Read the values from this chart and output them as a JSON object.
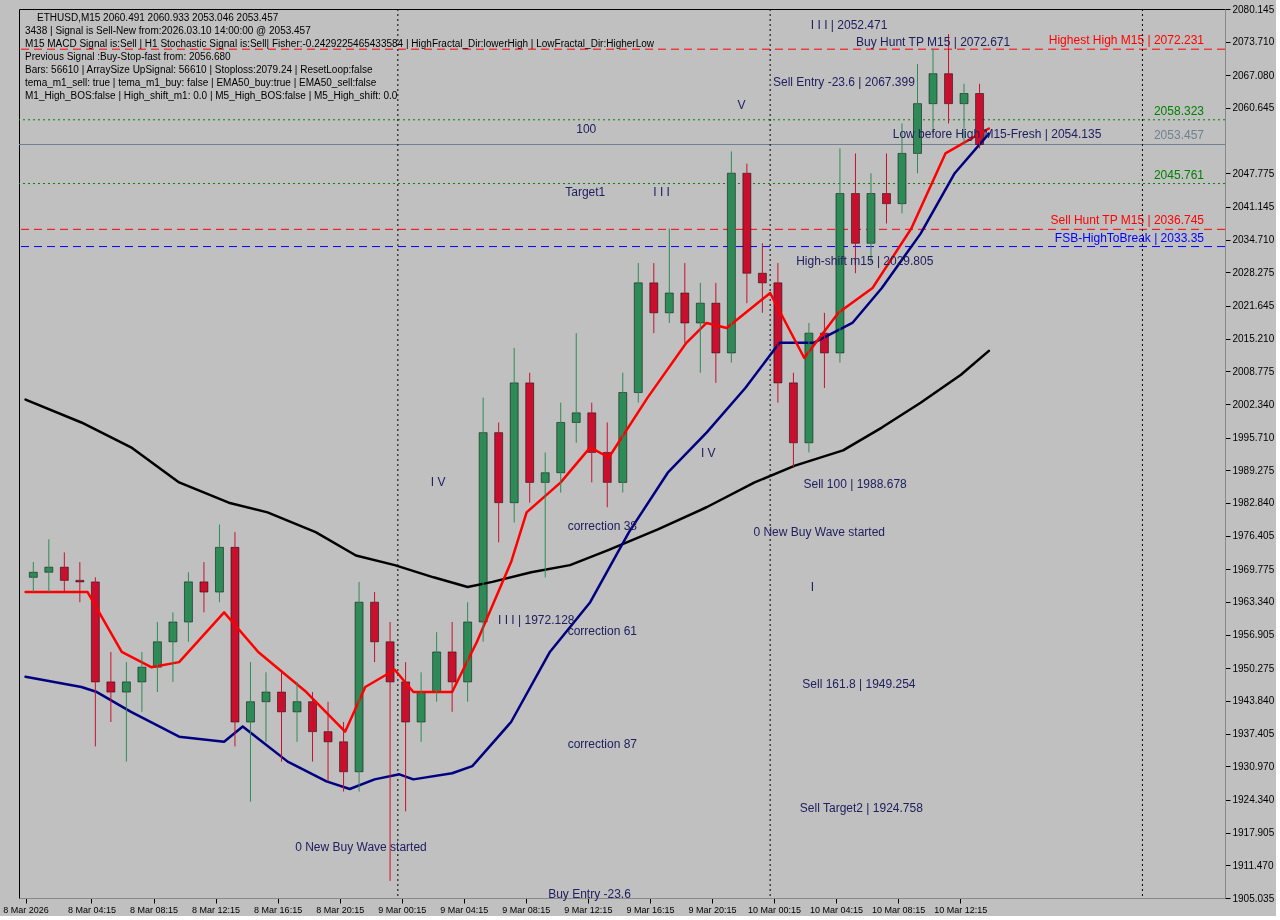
{
  "chart_data": {
    "type": "candlestick",
    "title": "ETHUSD,M15  2060.491 2060.933 2053.046 2053.457",
    "x": [
      "2026-03-08T00:30",
      "2026-03-08T01:30",
      "2026-03-08T02:30",
      "2026-03-08T03:30",
      "2026-03-08T04:30",
      "2026-03-08T05:30",
      "2026-03-08T06:30",
      "2026-03-08T07:30",
      "2026-03-08T08:30",
      "2026-03-08T09:30",
      "2026-03-08T10:30",
      "2026-03-08T11:30",
      "2026-03-08T12:30",
      "2026-03-08T13:30",
      "2026-03-08T14:30",
      "2026-03-08T15:30",
      "2026-03-08T16:30",
      "2026-03-08T17:30",
      "2026-03-08T18:30",
      "2026-03-08T19:30",
      "2026-03-08T20:30",
      "2026-03-08T21:30",
      "2026-03-08T22:30",
      "2026-03-08T23:30",
      "2026-03-09T00:30",
      "2026-03-09T01:30",
      "2026-03-09T02:30",
      "2026-03-09T03:30",
      "2026-03-09T04:30",
      "2026-03-09T05:30",
      "2026-03-09T06:30",
      "2026-03-09T07:30",
      "2026-03-09T08:30",
      "2026-03-09T09:30",
      "2026-03-09T10:30",
      "2026-03-09T11:30",
      "2026-03-09T12:30",
      "2026-03-09T13:30",
      "2026-03-09T14:30",
      "2026-03-09T15:30",
      "2026-03-09T16:30",
      "2026-03-09T17:30",
      "2026-03-09T18:30",
      "2026-03-09T19:30",
      "2026-03-09T20:30",
      "2026-03-09T21:30",
      "2026-03-09T22:30",
      "2026-03-09T23:30",
      "2026-03-10T00:30",
      "2026-03-10T01:30",
      "2026-03-10T02:30",
      "2026-03-10T03:30",
      "2026-03-10T04:30",
      "2026-03-10T05:30",
      "2026-03-10T06:30",
      "2026-03-10T07:30",
      "2026-03-10T08:30",
      "2026-03-10T09:30",
      "2026-03-10T10:30",
      "2026-03-10T11:30",
      "2026-03-10T12:30",
      "2026-03-10T13:30"
    ],
    "ohlc": [
      [
        1968.2,
        1971.2,
        1965.3,
        1969.2
      ],
      [
        1969.2,
        1975.7,
        1965.3,
        1970.2
      ],
      [
        1970.2,
        1973.1,
        1965.3,
        1967.6
      ],
      [
        1967.6,
        1971.2,
        1963.3,
        1967.3
      ],
      [
        1967.3,
        1968.2,
        1934.9,
        1947.6
      ],
      [
        1947.6,
        1953.5,
        1939.7,
        1945.6
      ],
      [
        1945.6,
        1951.5,
        1931.9,
        1947.6
      ],
      [
        1947.6,
        1953.5,
        1941.7,
        1950.5
      ],
      [
        1950.5,
        1959.4,
        1945.6,
        1955.5
      ],
      [
        1955.5,
        1961.3,
        1947.6,
        1959.4
      ],
      [
        1959.4,
        1969.2,
        1955.5,
        1967.3
      ],
      [
        1967.3,
        1971.2,
        1961.3,
        1965.3
      ],
      [
        1965.3,
        1978.6,
        1963.3,
        1974.1
      ],
      [
        1974.1,
        1977.1,
        1934.9,
        1939.7
      ],
      [
        1939.7,
        1951.5,
        1924.0,
        1943.7
      ],
      [
        1943.7,
        1949.5,
        1935.8,
        1945.6
      ],
      [
        1945.6,
        1949.5,
        1931.9,
        1941.7
      ],
      [
        1941.7,
        1947.6,
        1935.8,
        1943.7
      ],
      [
        1943.7,
        1945.6,
        1931.9,
        1937.8
      ],
      [
        1937.8,
        1943.7,
        1928.0,
        1935.8
      ],
      [
        1935.8,
        1939.7,
        1926.0,
        1929.9
      ],
      [
        1929.9,
        1967.3,
        1926.0,
        1963.3
      ],
      [
        1963.3,
        1965.3,
        1951.5,
        1955.5
      ],
      [
        1955.5,
        1959.4,
        1908.4,
        1947.6
      ],
      [
        1947.6,
        1951.5,
        1922.1,
        1939.7
      ],
      [
        1939.7,
        1949.5,
        1935.8,
        1945.6
      ],
      [
        1945.6,
        1957.4,
        1943.7,
        1953.5
      ],
      [
        1953.5,
        1959.4,
        1941.7,
        1947.6
      ],
      [
        1947.6,
        1963.3,
        1943.7,
        1959.4
      ],
      [
        1959.4,
        2003.6,
        1955.5,
        1996.7
      ],
      [
        1996.7,
        1998.7,
        1975.1,
        1982.9
      ],
      [
        1982.9,
        2013.4,
        1979.0,
        2006.5
      ],
      [
        2006.5,
        2008.5,
        1982.9,
        1986.9
      ],
      [
        1986.9,
        1992.8,
        1968.2,
        1988.8
      ],
      [
        1988.8,
        2002.6,
        1984.9,
        1998.7
      ],
      [
        1998.7,
        2016.3,
        1994.7,
        2000.6
      ],
      [
        2000.6,
        2002.6,
        1986.9,
        1992.8
      ],
      [
        1992.8,
        1998.7,
        1982.0,
        1986.9
      ],
      [
        1986.9,
        2008.5,
        1984.9,
        2004.6
      ],
      [
        2004.6,
        2030.1,
        2002.6,
        2026.2
      ],
      [
        2026.2,
        2030.1,
        2016.3,
        2020.3
      ],
      [
        2020.3,
        2036.9,
        2018.3,
        2024.2
      ],
      [
        2024.2,
        2030.1,
        2014.4,
        2018.3
      ],
      [
        2018.3,
        2026.2,
        2008.5,
        2022.2
      ],
      [
        2022.2,
        2026.2,
        2006.5,
        2012.4
      ],
      [
        2012.4,
        2052.1,
        2010.5,
        2047.8
      ],
      [
        2047.8,
        2049.7,
        2022.2,
        2028.1
      ],
      [
        2028.1,
        2034.0,
        2020.3,
        2026.2
      ],
      [
        2026.2,
        2030.1,
        2002.6,
        2006.5
      ],
      [
        2006.5,
        2008.5,
        1989.8,
        1994.7
      ],
      [
        1994.7,
        2018.3,
        1992.8,
        2016.3
      ],
      [
        2016.3,
        2020.3,
        2005.5,
        2012.4
      ],
      [
        2012.4,
        2052.7,
        2010.5,
        2043.8
      ],
      [
        2043.8,
        2051.7,
        2028.1,
        2034.0
      ],
      [
        2034.0,
        2047.8,
        2030.1,
        2043.8
      ],
      [
        2043.8,
        2051.7,
        2037.9,
        2041.8
      ],
      [
        2041.8,
        2057.6,
        2039.9,
        2051.7
      ],
      [
        2051.7,
        2069.3,
        2047.8,
        2061.5
      ],
      [
        2061.5,
        2072.3,
        2055.6,
        2067.4
      ],
      [
        2067.4,
        2075.2,
        2057.6,
        2061.5
      ],
      [
        2061.5,
        2065.4,
        2053.6,
        2063.5
      ],
      [
        2063.5,
        2065.4,
        2052.7,
        2053.457
      ]
    ],
    "colors": [
      "#2e8b57",
      "#2e8b57",
      "#c8102e",
      "#c8102e",
      "#c8102e",
      "#c8102e",
      "#2e8b57",
      "#2e8b57",
      "#2e8b57",
      "#2e8b57",
      "#2e8b57",
      "#c8102e",
      "#2e8b57",
      "#c8102e",
      "#2e8b57",
      "#2e8b57",
      "#c8102e",
      "#2e8b57",
      "#c8102e",
      "#c8102e",
      "#c8102e",
      "#2e8b57",
      "#c8102e",
      "#c8102e",
      "#c8102e",
      "#2e8b57",
      "#2e8b57",
      "#c8102e",
      "#2e8b57",
      "#2e8b57",
      "#c8102e",
      "#2e8b57",
      "#c8102e",
      "#2e8b57",
      "#2e8b57",
      "#2e8b57",
      "#c8102e",
      "#c8102e",
      "#2e8b57",
      "#2e8b57",
      "#c8102e",
      "#2e8b57",
      "#c8102e",
      "#2e8b57",
      "#c8102e",
      "#2e8b57",
      "#c8102e",
      "#c8102e",
      "#c8102e",
      "#c8102e",
      "#2e8b57",
      "#c8102e",
      "#2e8b57",
      "#c8102e",
      "#2e8b57",
      "#c8102e",
      "#2e8b57",
      "#2e8b57",
      "#2e8b57",
      "#c8102e",
      "#2e8b57",
      "#c8102e"
    ],
    "series": [
      {
        "type": "line",
        "color": "#000000",
        "x": [
          "2026-03-08T00:00",
          "2026-03-08T03:36",
          "2026-03-08T06:48",
          "2026-03-08T09:54",
          "2026-03-08T13:06",
          "2026-03-08T15:36",
          "2026-03-08T18:42",
          "2026-03-08T21:18",
          "2026-03-08T23:48",
          "2026-03-09T02:18",
          "2026-03-09T04:30",
          "2026-03-09T06:06",
          "2026-03-09T08:36",
          "2026-03-09T11:06",
          "2026-03-09T13:36",
          "2026-03-09T16:48",
          "2026-03-09T19:54",
          "2026-03-09T23:00",
          "2026-03-10T01:36",
          "2026-03-10T04:42",
          "2026-03-10T07:12",
          "2026-03-10T09:42",
          "2026-03-10T12:18",
          "2026-03-10T14:06"
        ],
        "values": [
          2003.2,
          1998.7,
          1993.8,
          1986.9,
          1982.9,
          1981.0,
          1977.1,
          1972.5,
          1970.6,
          1968.2,
          1966.3,
          1967.3,
          1969.2,
          1970.6,
          1973.6,
          1977.7,
          1982.0,
          1986.9,
          1990.2,
          1993.2,
          1997.7,
          2002.6,
          2008.1,
          2012.8
        ]
      },
      {
        "type": "line",
        "color": "#000080",
        "x": [
          "2026-03-08T00:00",
          "2026-03-08T03:36",
          "2026-03-08T04:36",
          "2026-03-08T06:48",
          "2026-03-08T09:54",
          "2026-03-08T12:48",
          "2026-03-08T14:00",
          "2026-03-08T16:54",
          "2026-03-08T19:24",
          "2026-03-08T20:54",
          "2026-03-08T22:30",
          "2026-03-09T00:06",
          "2026-03-09T01:00",
          "2026-03-09T03:30",
          "2026-03-09T04:48",
          "2026-03-09T07:18",
          "2026-03-09T09:48",
          "2026-03-09T12:24",
          "2026-03-09T14:54",
          "2026-03-09T17:24",
          "2026-03-09T19:54",
          "2026-03-09T22:24",
          "2026-03-10T00:36",
          "2026-03-10T02:48",
          "2026-03-10T05:18",
          "2026-03-10T07:12",
          "2026-03-10T09:42",
          "2026-03-10T11:54",
          "2026-03-10T14:06"
        ],
        "values": [
          1948.6,
          1946.6,
          1945.6,
          1941.7,
          1936.8,
          1935.8,
          1938.8,
          1931.9,
          1928.0,
          1926.5,
          1928.4,
          1929.4,
          1928.4,
          1929.6,
          1931.0,
          1939.7,
          1953.5,
          1963.3,
          1977.1,
          1988.8,
          1996.7,
          2005.5,
          2014.4,
          2014.4,
          2018.3,
          2025.2,
          2035.9,
          2047.8,
          2055.6
        ]
      },
      {
        "type": "line",
        "color": "#ff0000",
        "x": [
          "2026-03-08T00:00",
          "2026-03-08T04:00",
          "2026-03-08T06:12",
          "2026-03-08T08:06",
          "2026-03-08T09:54",
          "2026-03-08T12:48",
          "2026-03-08T15:00",
          "2026-03-08T18:06",
          "2026-03-08T20:36",
          "2026-03-08T21:54",
          "2026-03-08T23:48",
          "2026-03-09T01:00",
          "2026-03-09T03:30",
          "2026-03-09T05:06",
          "2026-03-09T07:18",
          "2026-03-09T08:18",
          "2026-03-09T10:30",
          "2026-03-09T12:24",
          "2026-03-09T13:36",
          "2026-03-09T16:06",
          "2026-03-09T18:36",
          "2026-03-09T19:54",
          "2026-03-09T21:12",
          "2026-03-10T00:00",
          "2026-03-10T02:12",
          "2026-03-10T04:24",
          "2026-03-10T06:36",
          "2026-03-10T09:06",
          "2026-03-10T11:18",
          "2026-03-10T14:06"
        ],
        "values": [
          1965.3,
          1965.3,
          1953.5,
          1950.5,
          1951.5,
          1961.3,
          1953.5,
          1945.6,
          1937.8,
          1946.6,
          1950.0,
          1945.6,
          1945.6,
          1955.5,
          1971.2,
          1981.0,
          1986.9,
          1993.8,
          1991.8,
          2003.6,
          2014.4,
          2018.3,
          2017.3,
          2024.2,
          2011.4,
          2020.3,
          2025.2,
          2036.9,
          2051.7,
          2056.6
        ]
      }
    ],
    "xlim": [
      "2026-03-07T23:54",
      "2026-03-11T05:00"
    ],
    "xticks": [
      {
        "value": "2026-03-08T00:00",
        "label": "8 Mar 2026"
      },
      {
        "value": "2026-03-08T04:15",
        "label": "8 Mar 04:15"
      },
      {
        "value": "2026-03-08T08:15",
        "label": "8 Mar 08:15"
      },
      {
        "value": "2026-03-08T12:15",
        "label": "8 Mar 12:15"
      },
      {
        "value": "2026-03-08T16:15",
        "label": "8 Mar 16:15"
      },
      {
        "value": "2026-03-08T20:15",
        "label": "8 Mar 20:15"
      },
      {
        "value": "2026-03-09T00:15",
        "label": "9 Mar 00:15"
      },
      {
        "value": "2026-03-09T04:15",
        "label": "9 Mar 04:15"
      },
      {
        "value": "2026-03-09T08:15",
        "label": "9 Mar 08:15"
      },
      {
        "value": "2026-03-09T12:15",
        "label": "9 Mar 12:15"
      },
      {
        "value": "2026-03-09T16:15",
        "label": "9 Mar 16:15"
      },
      {
        "value": "2026-03-09T20:15",
        "label": "9 Mar 20:15"
      },
      {
        "value": "2026-03-10T00:15",
        "label": "10 Mar 00:15"
      },
      {
        "value": "2026-03-10T04:15",
        "label": "10 Mar 04:15"
      },
      {
        "value": "2026-03-10T08:15",
        "label": "10 Mar 08:15"
      },
      {
        "value": "2026-03-10T12:15",
        "label": "10 Mar 12:15"
      }
    ],
    "ylim": [
      1905.035,
      2080.145
    ],
    "yticks": [
      {
        "value": 2080.145,
        "label": "2080.145"
      },
      {
        "value": 2073.71,
        "label": "2073.710"
      },
      {
        "value": 2067.08,
        "label": "2067.080"
      },
      {
        "value": 2060.645,
        "label": "2060.645"
      },
      {
        "value": 2047.775,
        "label": "2047.775"
      },
      {
        "value": 2041.145,
        "label": "2041.145"
      },
      {
        "value": 2034.71,
        "label": "2034.710"
      },
      {
        "value": 2028.275,
        "label": "2028.275"
      },
      {
        "value": 2021.645,
        "label": "2021.645"
      },
      {
        "value": 2015.21,
        "label": "2015.210"
      },
      {
        "value": 2008.775,
        "label": "2008.775"
      },
      {
        "value": 2002.34,
        "label": "2002.340"
      },
      {
        "value": 1995.71,
        "label": "1995.710"
      },
      {
        "value": 1989.275,
        "label": "1989.275"
      },
      {
        "value": 1982.84,
        "label": "1982.840"
      },
      {
        "value": 1976.405,
        "label": "1976.405"
      },
      {
        "value": 1969.775,
        "label": "1969.775"
      },
      {
        "value": 1963.34,
        "label": "1963.340"
      },
      {
        "value": 1956.905,
        "label": "1956.905"
      },
      {
        "value": 1950.275,
        "label": "1950.275"
      },
      {
        "value": 1943.84,
        "label": "1943.840"
      },
      {
        "value": 1937.405,
        "label": "1937.405"
      },
      {
        "value": 1930.97,
        "label": "1930.970"
      },
      {
        "value": 1924.34,
        "label": "1924.340"
      },
      {
        "value": 1917.905,
        "label": "1917.905"
      },
      {
        "value": 1911.47,
        "label": "1911.470"
      },
      {
        "value": 1905.035,
        "label": "1905.035"
      }
    ],
    "grid": false,
    "ref_lines": [
      {
        "axis": "y",
        "value": 2072.231,
        "label": "Highest High   M15 | 2072.231",
        "color": "#ff0000",
        "line_style": "dashed"
      },
      {
        "axis": "y",
        "value": 2058.323,
        "label": "2058.323",
        "color": "#008000",
        "line_style": "dotted"
      },
      {
        "axis": "y",
        "value": 2053.457,
        "label": "2053.457",
        "color": "#708090",
        "line_style": "solid"
      },
      {
        "axis": "y",
        "value": 2045.761,
        "label": "2045.761",
        "color": "#008000",
        "line_style": "dotted"
      },
      {
        "axis": "y",
        "value": 2036.745,
        "label": "Sell Hunt TP M15 | 2036.745",
        "color": "#ff0000",
        "line_style": "dashed"
      },
      {
        "axis": "y",
        "value": 2033.35,
        "label": "FSB-HighToBreak | 2033.35",
        "color": "#0000ff",
        "line_style": "dashed"
      },
      {
        "axis": "x",
        "value": "2026-03-09T00:00",
        "color": "#000000",
        "line_style": "dotted"
      },
      {
        "axis": "x",
        "value": "2026-03-10T00:00",
        "color": "#000000",
        "line_style": "dotted"
      },
      {
        "axis": "x",
        "value": "2026-03-11T00:00",
        "color": "#000000",
        "line_style": "dotted"
      }
    ],
    "annotations": [
      "3438 | Signal is Sell-New from:2026.03.10 14:00:00 @ 2053.457",
      "M15 MACD Signal is:Sell | H1 Stochastic Signal is:Sell| Fisher:-0.2429225465433584 | HighFractal_Dir:lowerHigh | LowFractal_Dir:HigherLow",
      "Previous Signal :Buy-Stop-fast from: 2056.680",
      "Bars: 56610 | ArraySize UpSignal: 56610 | Stoploss:2079.24 | ResetLoop:false",
      "tema_m1_sell: true | tema_m1_buy: false | EMA50_buy:true | EMA50_sell:false",
      "M1_High_BOS:false | High_shift_m1: 0.0 | M5_High_BOS:false | M5_High_shift: 0.0",
      "I I I | 2052.471",
      "Buy Hunt TP M15 | 2072.671",
      "Sell Entry -23.6 | 2067.399",
      "100",
      "Target1",
      "I I I",
      "V",
      "Low before High   M15-Fresh | 2054.135",
      "High-shift m15 | 2029.805",
      "I V",
      "I V",
      "Sell 100 | 1988.678",
      "0 New Buy Wave started",
      "correction 38",
      "I I I | 1972.128",
      "correction 61",
      "I",
      "Sell 161.8 | 1949.254",
      "correction 87",
      "0 New Buy Wave started",
      "Sell Target2 | 1924.758",
      "Buy Entry -23.6"
    ]
  }
}
